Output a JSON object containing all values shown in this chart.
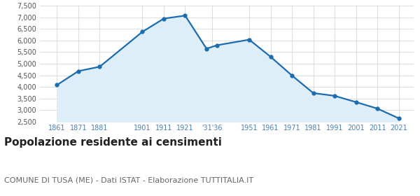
{
  "years": [
    1861,
    1871,
    1881,
    1901,
    1911,
    1921,
    1931,
    1936,
    1951,
    1961,
    1971,
    1981,
    1991,
    2001,
    2011,
    2021
  ],
  "population": [
    4080,
    4680,
    4870,
    6380,
    6950,
    7080,
    5650,
    5800,
    6040,
    5300,
    4490,
    3730,
    3610,
    3340,
    3060,
    2640
  ],
  "x_tick_positions": [
    1861,
    1871,
    1881,
    1901,
    1911,
    1921,
    1933.5,
    1951,
    1961,
    1971,
    1981,
    1991,
    2001,
    2011,
    2021
  ],
  "x_tick_labels": [
    "1861",
    "1871",
    "1881",
    "1901",
    "1911",
    "1921",
    "'31'36",
    "1951",
    "1961",
    "1971",
    "1981",
    "1991",
    "2001",
    "2011",
    "2021"
  ],
  "ylim": [
    2500,
    7500
  ],
  "yticks": [
    2500,
    3000,
    3500,
    4000,
    4500,
    5000,
    5500,
    6000,
    6500,
    7000,
    7500
  ],
  "line_color": "#1b6cb0",
  "fill_color": "#ddeef8",
  "marker_color": "#1b6cb0",
  "bg_color": "#ffffff",
  "grid_color": "#d0d0d0",
  "tick_label_color": "#4a7fb5",
  "title": "Popolazione residente ai censimenti",
  "subtitle": "COMUNE DI TUSA (ME) - Dati ISTAT - Elaborazione TUTTITALIA.IT",
  "title_fontsize": 11,
  "subtitle_fontsize": 8,
  "xlim_left": 1853,
  "xlim_right": 2028
}
